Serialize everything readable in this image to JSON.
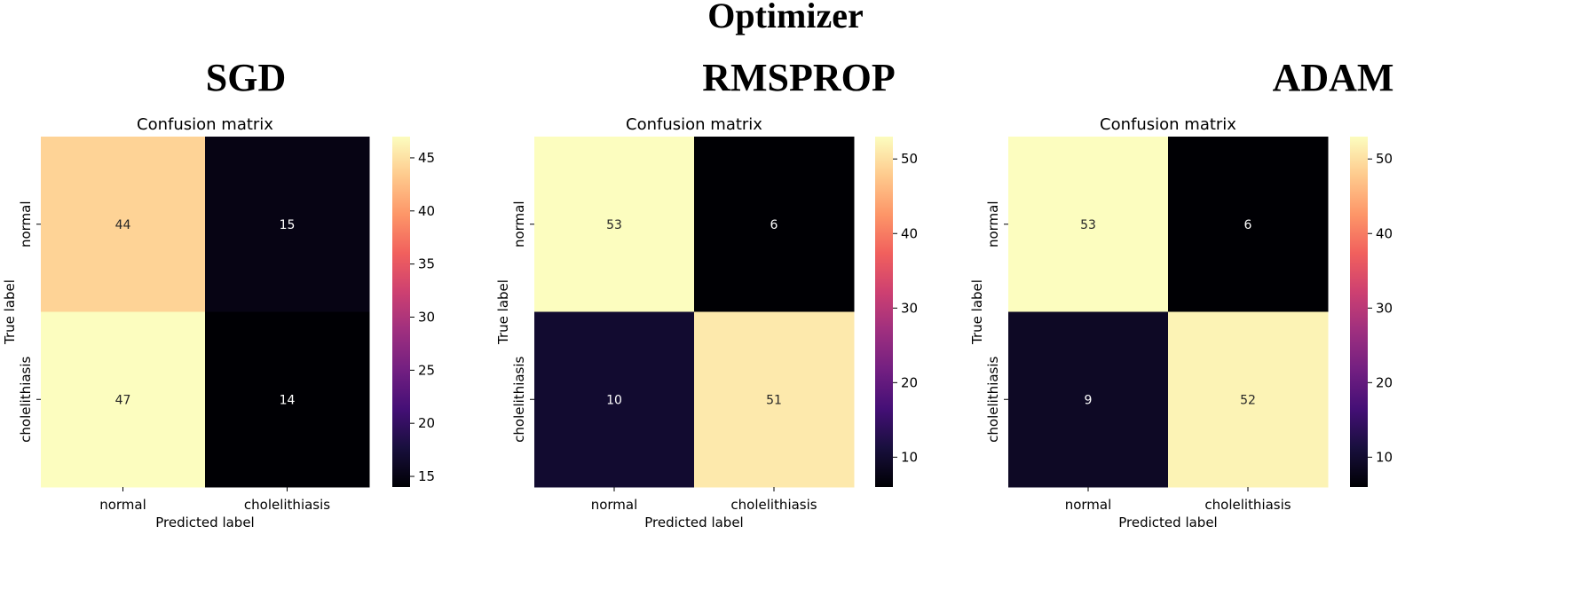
{
  "title": "Optimizer",
  "colormap": [
    "#000004",
    "#180f3d",
    "#440f76",
    "#721f81",
    "#9e2f7f",
    "#cd4071",
    "#f1605d",
    "#fd9668",
    "#feca8d",
    "#fcfdbf"
  ],
  "chart_data": [
    {
      "type": "heatmap",
      "panel_title": "SGD",
      "title": "Confusion matrix",
      "xlabel": "Predicted label",
      "ylabel": "True label",
      "x_categories": [
        "normal",
        "cholelithiasis"
      ],
      "y_categories": [
        "normal",
        "cholelithiasis"
      ],
      "values": [
        [
          44,
          15
        ],
        [
          47,
          14
        ]
      ],
      "value_labels": [
        [
          "44",
          "15"
        ],
        [
          "47",
          "14"
        ]
      ],
      "color_range": [
        14,
        47
      ],
      "colorbar_ticks": [
        15,
        20,
        25,
        30,
        35,
        40,
        45
      ],
      "colorbar_tick_labels": [
        "15",
        "20",
        "25",
        "30",
        "35",
        "40",
        "45"
      ]
    },
    {
      "type": "heatmap",
      "panel_title": "RMSPROP",
      "title": "Confusion matrix",
      "xlabel": "Predicted label",
      "ylabel": "True label",
      "x_categories": [
        "normal",
        "cholelithiasis"
      ],
      "y_categories": [
        "normal",
        "cholelithiasis"
      ],
      "values": [
        [
          53,
          6
        ],
        [
          10,
          51
        ]
      ],
      "value_labels": [
        [
          "53",
          "6"
        ],
        [
          "10",
          "51"
        ]
      ],
      "color_range": [
        6,
        53
      ],
      "colorbar_ticks": [
        10,
        20,
        30,
        40,
        50
      ],
      "colorbar_tick_labels": [
        "10",
        "20",
        "30",
        "40",
        "50"
      ]
    },
    {
      "type": "heatmap",
      "panel_title": "ADAM",
      "title": "Confusion matrix",
      "xlabel": "Predicted label",
      "ylabel": "True label",
      "x_categories": [
        "normal",
        "cholelithiasis"
      ],
      "y_categories": [
        "normal",
        "cholelithiasis"
      ],
      "values": [
        [
          53,
          6
        ],
        [
          9,
          52
        ]
      ],
      "value_labels": [
        [
          "53",
          "6"
        ],
        [
          "9",
          "52"
        ]
      ],
      "color_range": [
        6,
        53
      ],
      "colorbar_ticks": [
        10,
        20,
        30,
        40,
        50
      ],
      "colorbar_tick_labels": [
        "10",
        "20",
        "30",
        "40",
        "50"
      ]
    }
  ]
}
